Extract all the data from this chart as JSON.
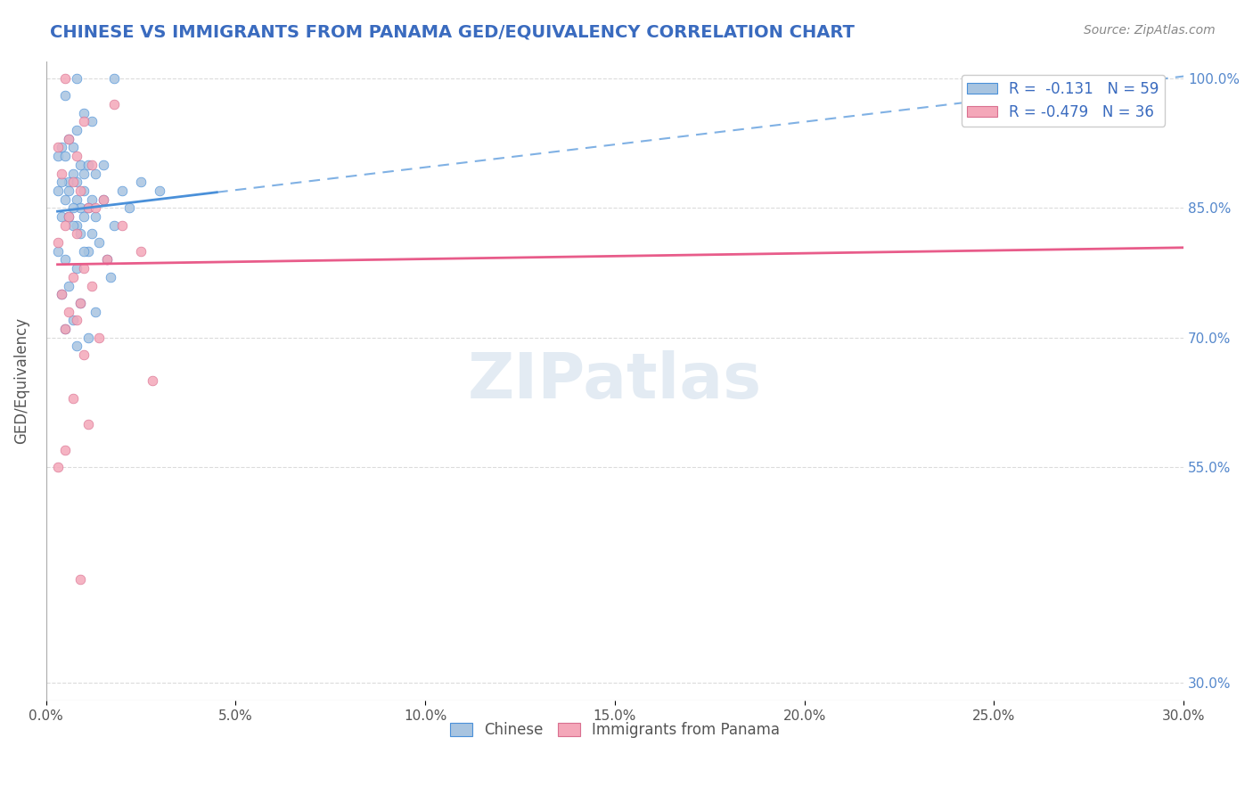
{
  "title": "CHINESE VS IMMIGRANTS FROM PANAMA GED/EQUIVALENCY CORRELATION CHART",
  "source_text": "Source: ZipAtlas.com",
  "xlabel": "",
  "ylabel": "GED/Equivalency",
  "legend_label1": "Chinese",
  "legend_label2": "Immigrants from Panama",
  "R1": -0.131,
  "N1": 59,
  "R2": -0.479,
  "N2": 36,
  "xlim": [
    0.0,
    0.3
  ],
  "ylim": [
    0.28,
    1.02
  ],
  "xticks": [
    0.0,
    0.05,
    0.1,
    0.15,
    0.2,
    0.25,
    0.3
  ],
  "xtick_labels": [
    "0.0%",
    "5.0%",
    "10.0%",
    "15.0%",
    "20.0%",
    "25.0%",
    "30.0%"
  ],
  "ytick_labels_right": [
    "100.0%",
    "85.0%",
    "70.0%",
    "55.0%",
    "30.0%"
  ],
  "ytick_vals_right": [
    1.0,
    0.85,
    0.7,
    0.55,
    0.3
  ],
  "color_chinese": "#a8c4e0",
  "color_panama": "#f4a7b9",
  "color_line_chinese": "#4a90d9",
  "color_line_panama": "#e85c8a",
  "color_text_blue": "#3a6bbf",
  "watermark_text": "ZIPatlas",
  "scatter_chinese_x": [
    0.008,
    0.018,
    0.005,
    0.01,
    0.012,
    0.008,
    0.006,
    0.004,
    0.007,
    0.003,
    0.005,
    0.009,
    0.011,
    0.015,
    0.01,
    0.007,
    0.013,
    0.006,
    0.008,
    0.004,
    0.01,
    0.003,
    0.006,
    0.012,
    0.008,
    0.005,
    0.009,
    0.011,
    0.007,
    0.004,
    0.006,
    0.013,
    0.01,
    0.008,
    0.02,
    0.015,
    0.025,
    0.03,
    0.018,
    0.012,
    0.014,
    0.009,
    0.007,
    0.011,
    0.016,
    0.005,
    0.003,
    0.008,
    0.017,
    0.022,
    0.01,
    0.006,
    0.004,
    0.009,
    0.013,
    0.007,
    0.005,
    0.011,
    0.008
  ],
  "scatter_chinese_y": [
    1.0,
    1.0,
    0.98,
    0.96,
    0.95,
    0.94,
    0.93,
    0.92,
    0.92,
    0.91,
    0.91,
    0.9,
    0.9,
    0.9,
    0.89,
    0.89,
    0.89,
    0.88,
    0.88,
    0.88,
    0.87,
    0.87,
    0.87,
    0.86,
    0.86,
    0.86,
    0.85,
    0.85,
    0.85,
    0.84,
    0.84,
    0.84,
    0.84,
    0.83,
    0.87,
    0.86,
    0.88,
    0.87,
    0.83,
    0.82,
    0.81,
    0.82,
    0.83,
    0.8,
    0.79,
    0.79,
    0.8,
    0.78,
    0.77,
    0.85,
    0.8,
    0.76,
    0.75,
    0.74,
    0.73,
    0.72,
    0.71,
    0.7,
    0.69
  ],
  "scatter_panama_x": [
    0.005,
    0.018,
    0.01,
    0.006,
    0.003,
    0.008,
    0.012,
    0.004,
    0.007,
    0.009,
    0.015,
    0.011,
    0.013,
    0.006,
    0.005,
    0.02,
    0.008,
    0.003,
    0.025,
    0.016,
    0.01,
    0.007,
    0.012,
    0.004,
    0.009,
    0.006,
    0.008,
    0.005,
    0.014,
    0.01,
    0.028,
    0.007,
    0.011,
    0.005,
    0.003,
    0.009
  ],
  "scatter_panama_y": [
    1.0,
    0.97,
    0.95,
    0.93,
    0.92,
    0.91,
    0.9,
    0.89,
    0.88,
    0.87,
    0.86,
    0.85,
    0.85,
    0.84,
    0.83,
    0.83,
    0.82,
    0.81,
    0.8,
    0.79,
    0.78,
    0.77,
    0.76,
    0.75,
    0.74,
    0.73,
    0.72,
    0.71,
    0.7,
    0.68,
    0.65,
    0.63,
    0.6,
    0.57,
    0.55,
    0.42
  ]
}
